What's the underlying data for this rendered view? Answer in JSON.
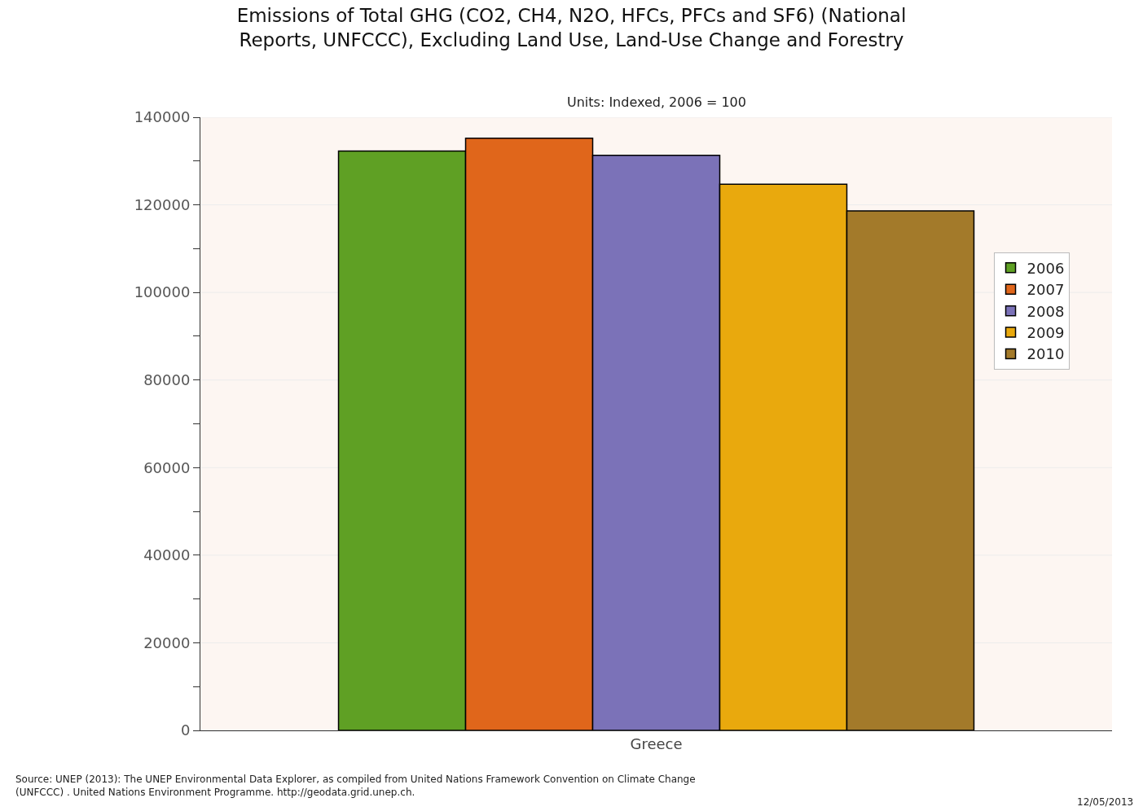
{
  "chart_data": {
    "type": "bar",
    "title": "Emissions of Total GHG (CO2, CH4, N2O, HFCs, PFCs and SF6) (National\nReports, UNFCCC), Excluding Land Use, Land-Use Change and Forestry",
    "subtitle": "Units: Indexed, 2006 = 100",
    "categories": [
      "Greece"
    ],
    "series": [
      {
        "name": "2006",
        "color": "#5fa024",
        "values": [
          132300
        ]
      },
      {
        "name": "2007",
        "color": "#e0661b",
        "values": [
          135200
        ]
      },
      {
        "name": "2008",
        "color": "#7b72b8",
        "values": [
          131300
        ]
      },
      {
        "name": "2009",
        "color": "#e9a90d",
        "values": [
          124700
        ]
      },
      {
        "name": "2010",
        "color": "#a37a2a",
        "values": [
          118600
        ]
      }
    ],
    "ylim": [
      0,
      140000
    ],
    "yticks": [
      0,
      {
        "value": 10000,
        "label": null
      },
      20000,
      {
        "value": 30000,
        "label": null
      },
      40000,
      {
        "value": 50000,
        "label": null
      },
      60000,
      {
        "value": 70000,
        "label": null
      },
      80000,
      {
        "value": 90000,
        "label": null
      },
      100000,
      {
        "value": 110000,
        "label": null
      },
      120000,
      {
        "value": 130000,
        "label": null
      },
      140000
    ],
    "grid": "y",
    "legend": "right",
    "annotations": [
      "Source: UNEP (2013): The UNEP Environmental Data Explorer, as compiled from United Nations Framework Convention on Climate Change\n(UNFCCC) . United Nations Environment Programme. http://geodata.grid.unep.ch.",
      "12/05/2013"
    ]
  }
}
